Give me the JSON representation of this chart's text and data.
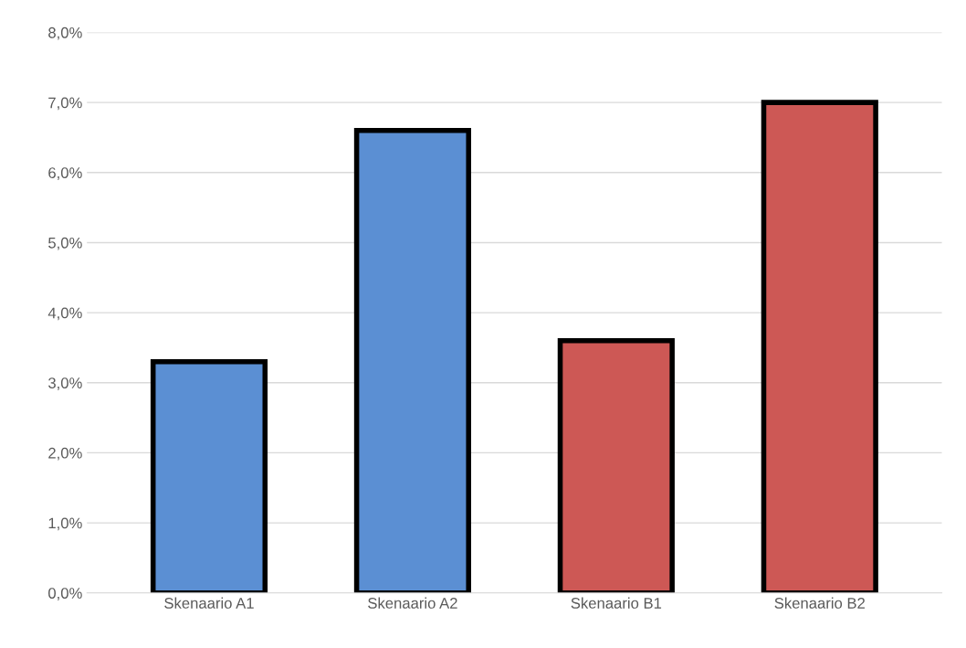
{
  "chart_data": {
    "type": "bar",
    "categories": [
      "Skenaario A1",
      "Skenaario A2",
      "Skenaario B1",
      "Skenaario B2"
    ],
    "values": [
      3.3,
      6.6,
      3.6,
      7.0
    ],
    "colors": [
      "#5b8fd3",
      "#5b8fd3",
      "#cd5855",
      "#cd5855"
    ],
    "ylim": [
      0,
      8
    ],
    "yticks": [
      {
        "value": 0,
        "label": "0,0%"
      },
      {
        "value": 1,
        "label": "1,0%"
      },
      {
        "value": 2,
        "label": "2,0%"
      },
      {
        "value": 3,
        "label": "3,0%"
      },
      {
        "value": 4,
        "label": "4,0%"
      },
      {
        "value": 5,
        "label": "5,0%"
      },
      {
        "value": 6,
        "label": "6,0%"
      },
      {
        "value": 7,
        "label": "7,0%"
      },
      {
        "value": 8,
        "label": "8,0%"
      }
    ],
    "grid": "y"
  }
}
